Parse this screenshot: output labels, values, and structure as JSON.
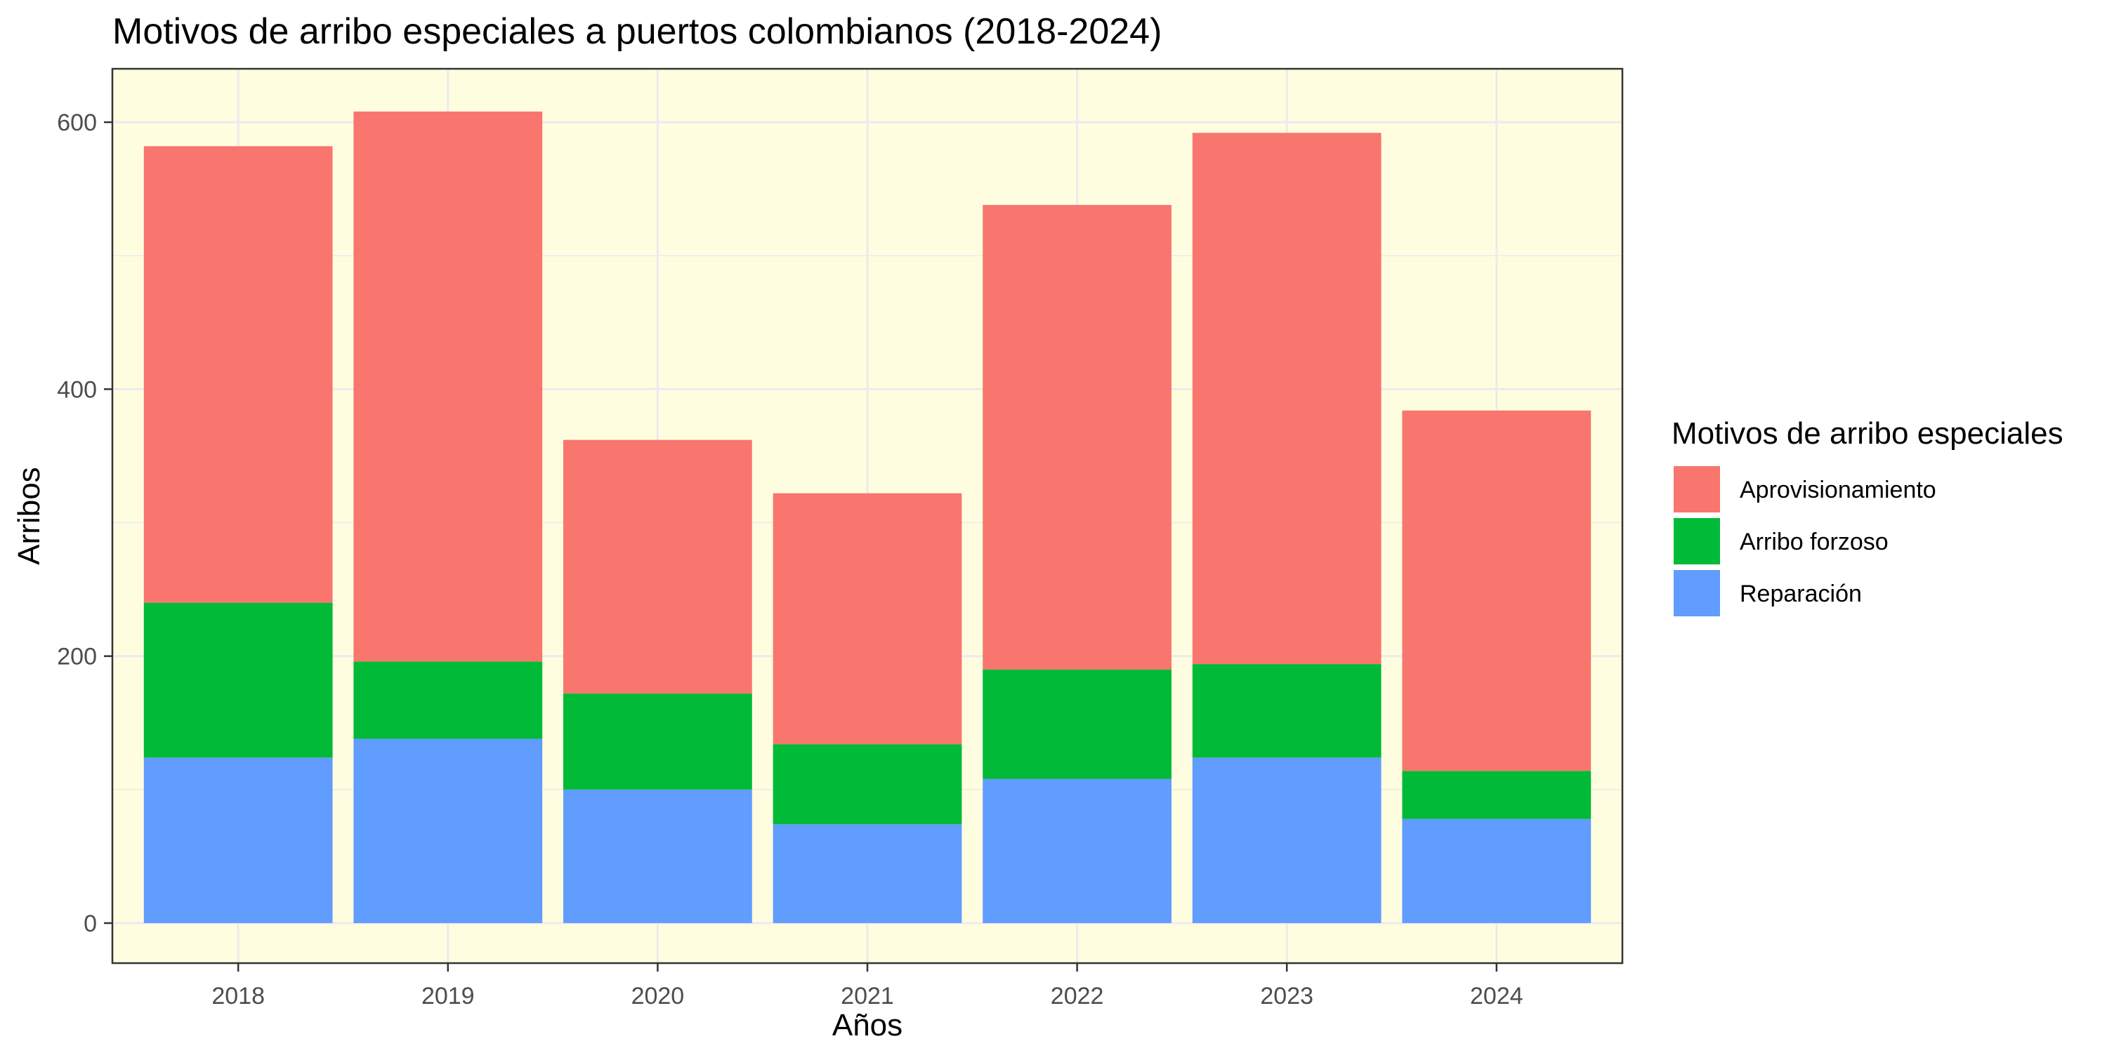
{
  "chart_data": {
    "type": "bar",
    "stacked": true,
    "title": "Motivos de arribo especiales a puertos colombianos (2018-2024)",
    "xlabel": "Años",
    "ylabel": "Arribos",
    "categories": [
      "2018",
      "2019",
      "2020",
      "2021",
      "2022",
      "2023",
      "2024"
    ],
    "ylim": [
      -30,
      640
    ],
    "yticks": [
      0,
      200,
      400,
      600
    ],
    "grid": true,
    "panel_background": "#FFFDE0",
    "legend": {
      "title": "Motivos de arribo especiales",
      "position": "right"
    },
    "series": [
      {
        "name": "Reparación",
        "color": "#619CFF",
        "values": [
          124,
          138,
          100,
          74,
          108,
          124,
          78
        ]
      },
      {
        "name": "Arribo forzoso",
        "color": "#00BA38",
        "values": [
          116,
          58,
          72,
          60,
          82,
          70,
          36
        ]
      },
      {
        "name": "Aprovisionamiento",
        "color": "#F8766D",
        "values": [
          342,
          412,
          190,
          188,
          348,
          398,
          270
        ]
      }
    ],
    "legend_order": [
      "Aprovisionamiento",
      "Arribo forzoso",
      "Reparación"
    ]
  }
}
